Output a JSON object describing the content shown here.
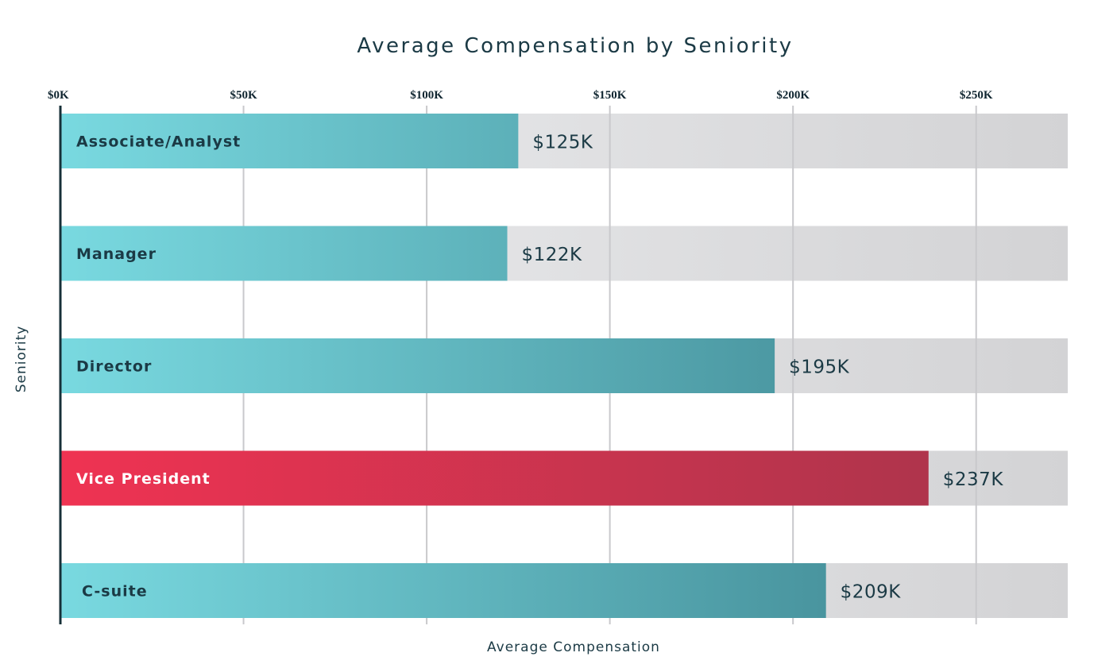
{
  "chart_data": {
    "type": "bar",
    "orientation": "horizontal",
    "title": "Average Compensation by Seniority",
    "xlabel": "Average Compensation",
    "ylabel": "Seniority",
    "xlim": [
      0,
      275000
    ],
    "x_ticks": [
      0,
      50000,
      100000,
      150000,
      200000,
      250000
    ],
    "x_tick_labels": [
      "$0K",
      "$50K",
      "$100K",
      "$150K",
      "$200K",
      "$250K"
    ],
    "x_axis_position": "top",
    "grid": true,
    "categories": [
      "Associate/Analyst",
      "Manager",
      "Director",
      "Vice President",
      "C-suite"
    ],
    "values": [
      125000,
      122000,
      195000,
      237000,
      209000
    ],
    "value_labels": [
      "$125K",
      "$122K",
      "$195K",
      "$237K",
      "$209K"
    ],
    "highlighted_category": "Vice President",
    "colors": {
      "bar_start": "#79d9e0",
      "bar_end": "#3a7f8a",
      "highlight_start": "#ef3352",
      "highlight_end": "#a5344b",
      "track_start": "#eeeff1",
      "track_end": "#d3d3d5",
      "text": "#1b3a45"
    }
  }
}
